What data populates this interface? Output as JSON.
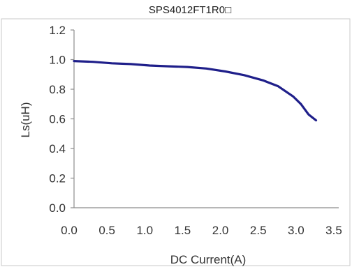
{
  "chart_data": {
    "type": "line",
    "title": "SPS4012FT1R0□",
    "xlabel": "DC Current(A)",
    "ylabel": "Ls(uH)",
    "xlim": [
      0.0,
      3.5
    ],
    "ylim": [
      0.0,
      1.2
    ],
    "xticks": [
      "0.0",
      "0.5",
      "1.0",
      "1.5",
      "2.0",
      "2.5",
      "3.0",
      "3.5"
    ],
    "yticks": [
      "0.0",
      "0.2",
      "0.4",
      "0.6",
      "0.8",
      "1.0",
      "1.2"
    ],
    "grid": false,
    "series": [
      {
        "color": "#1f1f8a",
        "x": [
          0.0,
          0.25,
          0.5,
          0.75,
          1.0,
          1.25,
          1.5,
          1.75,
          2.0,
          2.25,
          2.5,
          2.7,
          2.9,
          3.0,
          3.1,
          3.2
        ],
        "y": [
          0.99,
          0.985,
          0.975,
          0.97,
          0.96,
          0.955,
          0.95,
          0.94,
          0.92,
          0.895,
          0.86,
          0.82,
          0.75,
          0.7,
          0.63,
          0.59
        ]
      }
    ]
  }
}
